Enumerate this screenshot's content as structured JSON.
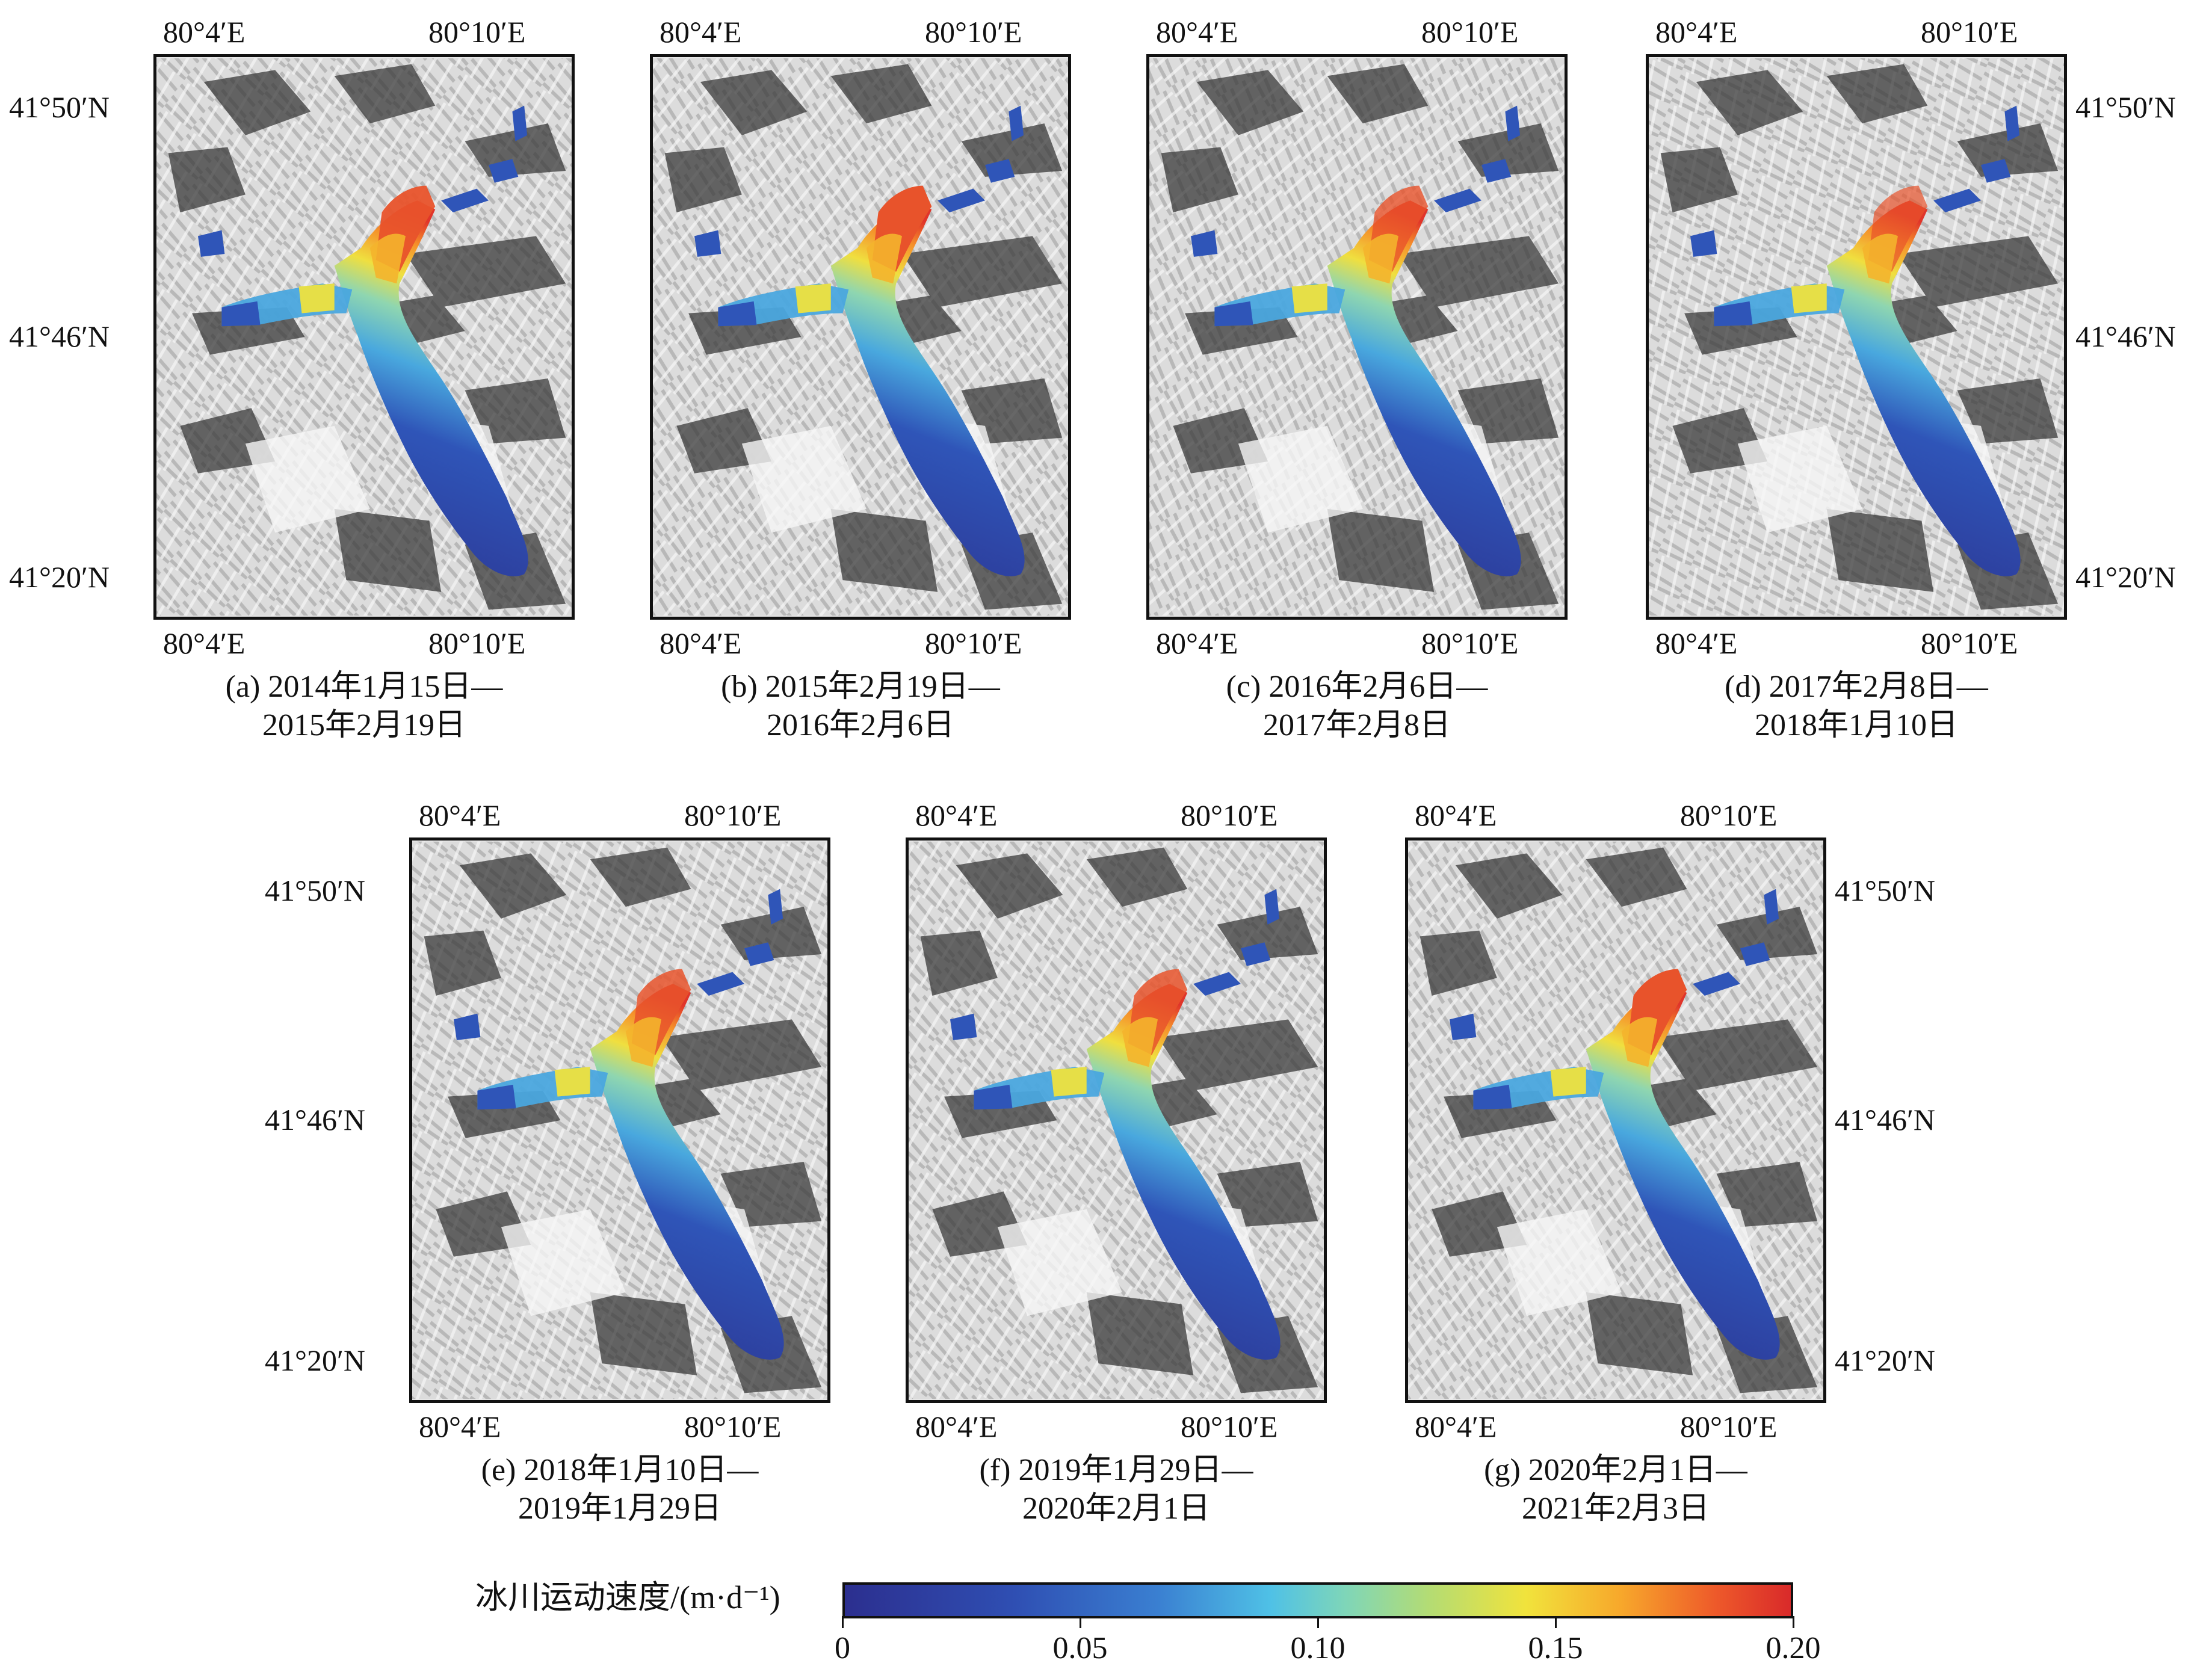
{
  "panels": [
    {
      "id": "a",
      "caption_line1": "(a) 2014年1月15日—",
      "caption_line2": "2015年2月19日"
    },
    {
      "id": "b",
      "caption_line1": "(b) 2015年2月19日—",
      "caption_line2": "2016年2月6日"
    },
    {
      "id": "c",
      "caption_line1": "(c) 2016年2月6日—",
      "caption_line2": "2017年2月8日"
    },
    {
      "id": "d",
      "caption_line1": "(d) 2017年2月8日—",
      "caption_line2": "2018年1月10日"
    },
    {
      "id": "e",
      "caption_line1": "(e) 2018年1月10日—",
      "caption_line2": "2019年1月29日"
    },
    {
      "id": "f",
      "caption_line1": "(f) 2019年1月29日—",
      "caption_line2": "2020年2月1日"
    },
    {
      "id": "g",
      "caption_line1": "(g) 2020年2月1日—",
      "caption_line2": "2021年2月3日"
    }
  ],
  "axes": {
    "lon_labels": [
      "80°4′E",
      "80°10′E"
    ],
    "lat_labels": [
      "41°50′N",
      "41°46′N",
      "41°20′N"
    ]
  },
  "colorbar": {
    "title": "冰川运动速度/(m·d⁻¹)",
    "ticks": [
      "0",
      "0.05",
      "0.10",
      "0.15",
      "0.20"
    ],
    "min": 0,
    "max": 0.2,
    "colors": [
      "#2c2f8f",
      "#2f4fb3",
      "#3a7fd1",
      "#4fc1e6",
      "#7fd6b8",
      "#b5dc72",
      "#f1e33c",
      "#f7a82b",
      "#ee5a2a",
      "#d92a2a"
    ]
  }
}
